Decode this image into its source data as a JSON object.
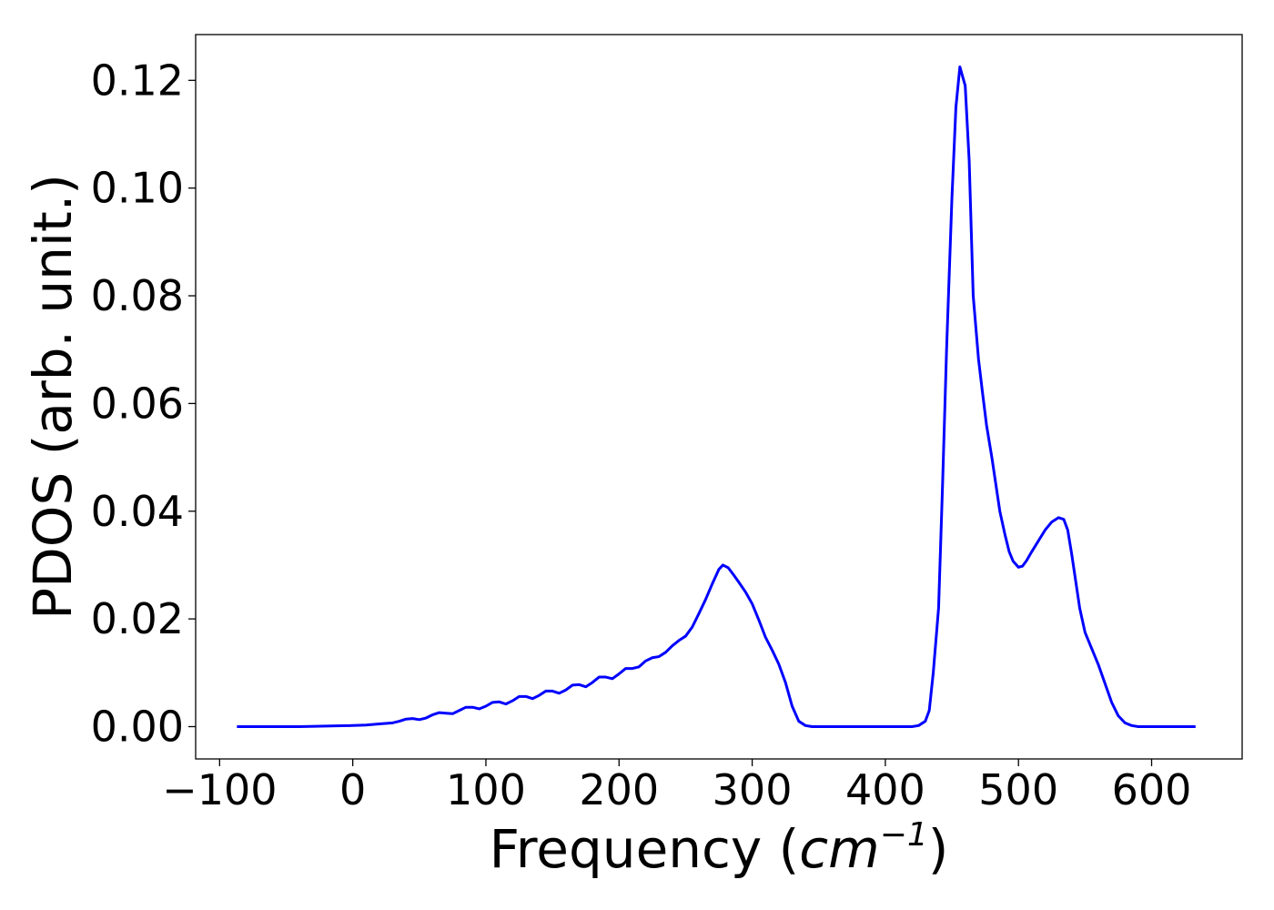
{
  "chart_data": {
    "type": "line",
    "title": "",
    "xlabel": "Frequency (",
    "xlabel_math": "cm",
    "xlabel_sup": "−1",
    "xlabel_close": ")",
    "ylabel": "PDOS (arb. unit.)",
    "xlim": [
      -118,
      668
    ],
    "ylim": [
      -0.006,
      0.1285
    ],
    "xticks": [
      -100,
      0,
      100,
      200,
      300,
      400,
      500,
      600
    ],
    "xtick_labels": [
      "−100",
      "0",
      "100",
      "200",
      "300",
      "400",
      "500",
      "600"
    ],
    "yticks": [
      0.0,
      0.02,
      0.04,
      0.06,
      0.08,
      0.1,
      0.12
    ],
    "ytick_labels": [
      "0.00",
      "0.02",
      "0.04",
      "0.06",
      "0.08",
      "0.10",
      "0.12"
    ],
    "grid": false,
    "line_color": "#0000ff",
    "series": [
      {
        "name": "",
        "x": [
          -87,
          -40,
          0,
          10,
          20,
          30,
          35,
          40,
          45,
          50,
          55,
          60,
          65,
          70,
          75,
          80,
          85,
          90,
          95,
          100,
          105,
          110,
          115,
          120,
          125,
          130,
          135,
          140,
          145,
          150,
          155,
          160,
          165,
          170,
          175,
          180,
          185,
          190,
          195,
          200,
          205,
          210,
          215,
          220,
          225,
          230,
          235,
          240,
          245,
          250,
          255,
          260,
          265,
          270,
          275,
          278,
          282,
          286,
          290,
          295,
          300,
          305,
          310,
          315,
          320,
          325,
          330,
          335,
          340,
          345,
          350,
          400,
          420,
          425,
          430,
          433,
          436,
          440,
          443,
          446,
          450,
          453,
          456,
          460,
          463,
          466,
          470,
          473,
          476,
          480,
          483,
          486,
          490,
          493,
          496,
          500,
          503,
          506,
          510,
          515,
          520,
          525,
          530,
          534,
          537,
          540,
          543,
          546,
          550,
          555,
          560,
          565,
          570,
          575,
          580,
          585,
          590,
          600,
          633
        ],
        "y": [
          0.0,
          0.0,
          0.0002,
          0.0003,
          0.0005,
          0.0007,
          0.001,
          0.0014,
          0.0015,
          0.0013,
          0.0016,
          0.0022,
          0.0026,
          0.0025,
          0.0024,
          0.003,
          0.0036,
          0.0036,
          0.0033,
          0.0038,
          0.0045,
          0.0046,
          0.0042,
          0.0048,
          0.0056,
          0.0056,
          0.0052,
          0.0058,
          0.0066,
          0.0066,
          0.0062,
          0.0068,
          0.0077,
          0.0078,
          0.0074,
          0.0082,
          0.0092,
          0.0092,
          0.0089,
          0.0098,
          0.0108,
          0.0108,
          0.0111,
          0.0122,
          0.0128,
          0.013,
          0.0138,
          0.015,
          0.016,
          0.0168,
          0.0185,
          0.021,
          0.0236,
          0.0265,
          0.0292,
          0.03,
          0.0295,
          0.0282,
          0.0268,
          0.025,
          0.0228,
          0.0198,
          0.0166,
          0.0142,
          0.0116,
          0.0082,
          0.0038,
          0.001,
          0.0002,
          0.0,
          0.0,
          0.0,
          0.0,
          0.0002,
          0.001,
          0.003,
          0.01,
          0.022,
          0.045,
          0.07,
          0.098,
          0.115,
          0.1225,
          0.119,
          0.105,
          0.08,
          0.0682,
          0.062,
          0.056,
          0.05,
          0.045,
          0.04,
          0.0355,
          0.0325,
          0.0307,
          0.0296,
          0.0298,
          0.0308,
          0.0325,
          0.0345,
          0.0365,
          0.038,
          0.0388,
          0.0385,
          0.0365,
          0.032,
          0.027,
          0.022,
          0.0175,
          0.0145,
          0.0115,
          0.008,
          0.0045,
          0.002,
          0.0007,
          0.0002,
          0.0,
          0.0,
          0.0
        ]
      }
    ]
  }
}
